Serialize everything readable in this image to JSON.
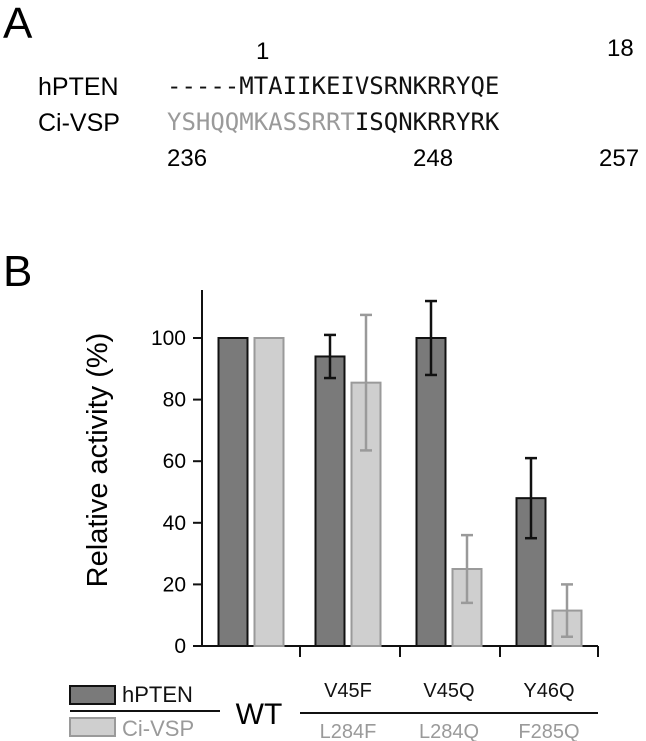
{
  "panel_a": {
    "label": "A",
    "rows": [
      {
        "name": "hPTEN",
        "gap": "-----",
        "seq_gray": "",
        "seq_black": "MTAIIKEIVSRNKRRYQE"
      },
      {
        "name": "Ci-VSP",
        "gap": "",
        "seq_gray": "YSHQQMKASSRRT",
        "seq_black": "ISQNKRRYRK"
      }
    ],
    "top_numbers": [
      "1",
      "18"
    ],
    "bottom_numbers": [
      "236",
      "248",
      "257"
    ]
  },
  "panel_b": {
    "label": "B",
    "wt_label": "WT",
    "hpten_mutants": [
      "V45F",
      "V45Q",
      "Y46Q"
    ],
    "civsp_mutants": [
      "L284F",
      "L284Q",
      "F285Q"
    ],
    "legend": [
      {
        "name": "hPTEN",
        "color": "#7a7a7a"
      },
      {
        "name": "Ci-VSP",
        "color": "#cfcfcf"
      }
    ]
  },
  "chart_data": {
    "type": "bar",
    "ylabel": "Relative activity (%)",
    "ylim": [
      0,
      115
    ],
    "yticks": [
      "0",
      "20",
      "40",
      "60",
      "80",
      "100"
    ],
    "categories": [
      "WT",
      "V45F/L284F",
      "V45Q/L284Q",
      "Y46Q/F285Q"
    ],
    "series": [
      {
        "name": "hPTEN",
        "color": "#7a7a7a",
        "error_color": "#111111",
        "values": [
          100,
          94,
          100,
          48
        ],
        "errors": [
          0.5,
          7,
          12,
          13
        ]
      },
      {
        "name": "Ci-VSP",
        "color": "#cfcfcf",
        "error_color": "#9a9a9a",
        "values": [
          100,
          85.5,
          25,
          11.5
        ],
        "errors": [
          0.5,
          22,
          11,
          8.5
        ]
      }
    ]
  }
}
